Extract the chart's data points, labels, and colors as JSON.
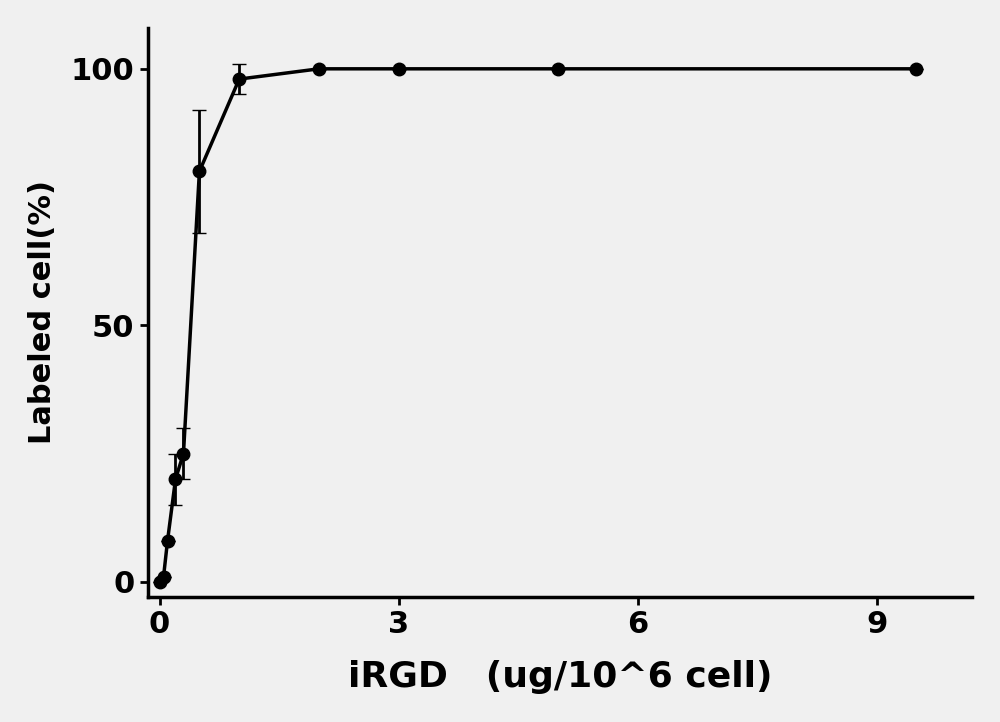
{
  "x": [
    0,
    0.05,
    0.1,
    0.2,
    0.3,
    0.5,
    1.0,
    2.0,
    3.0,
    5.0,
    9.5
  ],
  "y": [
    0,
    1,
    8,
    20,
    25,
    80,
    98,
    100,
    100,
    100,
    100
  ],
  "yerr": [
    0,
    0,
    0,
    5,
    5,
    12,
    3,
    0,
    0,
    0,
    0
  ],
  "xticks": [
    0,
    3,
    6,
    9
  ],
  "xticklabels": [
    "0",
    "3",
    "6",
    "9"
  ],
  "yticks": [
    0,
    50,
    100
  ],
  "yticklabels": [
    "0",
    "50",
    "100"
  ],
  "xlabel": "iRGD   (ug/10^6 cell)",
  "ylabel": "Labeled cell(%)",
  "xlim": [
    -0.15,
    10.2
  ],
  "ylim": [
    -3,
    108
  ],
  "line_color": "#000000",
  "marker_color": "#000000",
  "background_color": "#f0f0f0",
  "tick_fontsize": 22,
  "label_fontsize": 22,
  "xlabel_fontsize": 26,
  "linewidth": 2.5,
  "markersize": 9,
  "capsize": 5,
  "elinewidth": 2,
  "spine_linewidth": 2.5
}
